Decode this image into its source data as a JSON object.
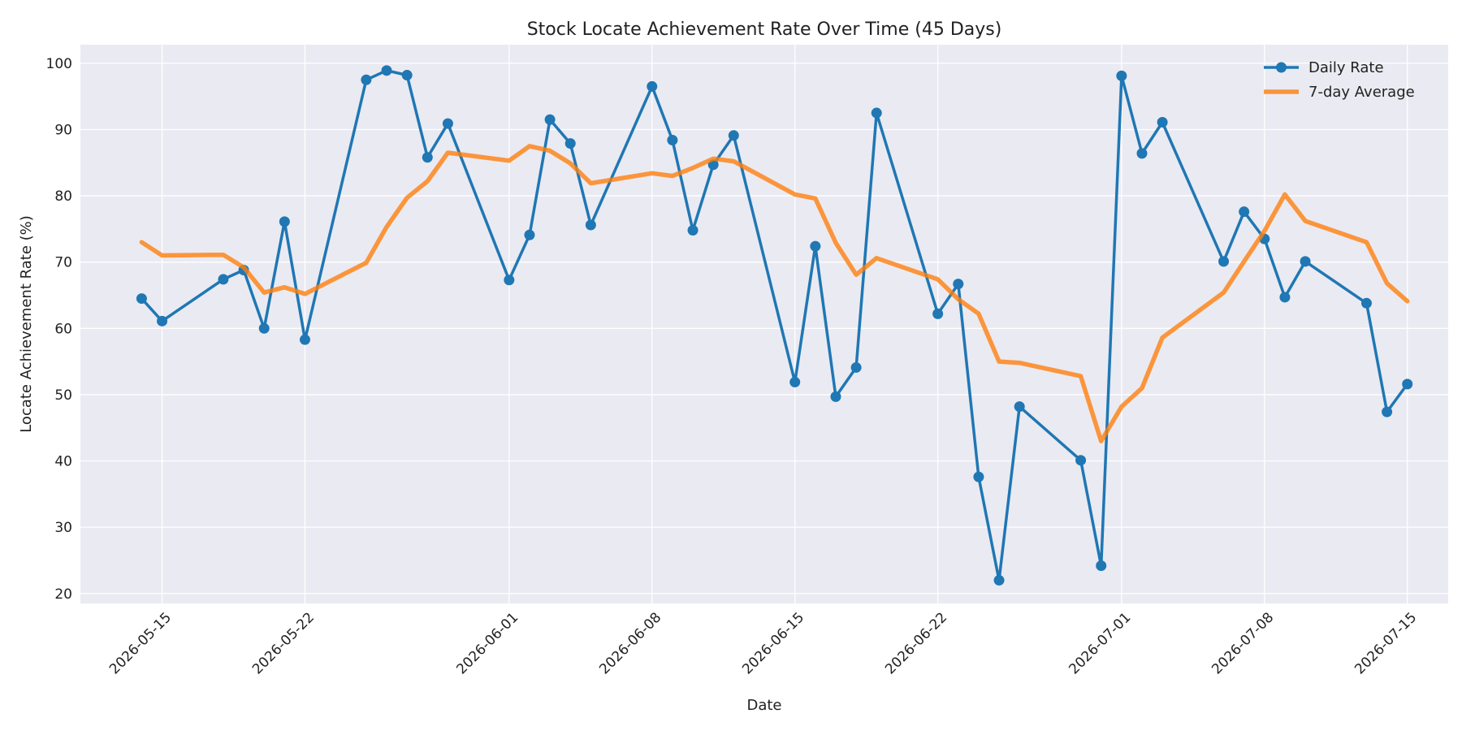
{
  "chart_data": {
    "type": "line",
    "title": "Stock Locate Achievement Rate Over Time (45 Days)",
    "xlabel": "Date",
    "ylabel": "Locate Achievement Rate (%)",
    "xlim": [
      "2026-05-11",
      "2026-07-17"
    ],
    "ylim": [
      18.5,
      102.8
    ],
    "yticks": [
      20,
      30,
      40,
      50,
      60,
      70,
      80,
      90,
      100
    ],
    "xticks": [
      "2026-05-15",
      "2026-05-22",
      "2026-06-01",
      "2026-06-08",
      "2026-06-15",
      "2026-06-22",
      "2026-07-01",
      "2026-07-08",
      "2026-07-15"
    ],
    "grid": true,
    "legend_position": "top-right",
    "x": [
      "2026-05-14",
      "2026-05-15",
      "2026-05-18",
      "2026-05-19",
      "2026-05-20",
      "2026-05-21",
      "2026-05-22",
      "2026-05-25",
      "2026-05-26",
      "2026-05-27",
      "2026-05-28",
      "2026-05-29",
      "2026-06-01",
      "2026-06-02",
      "2026-06-03",
      "2026-06-04",
      "2026-06-05",
      "2026-06-08",
      "2026-06-09",
      "2026-06-10",
      "2026-06-11",
      "2026-06-12",
      "2026-06-15",
      "2026-06-16",
      "2026-06-17",
      "2026-06-18",
      "2026-06-19",
      "2026-06-22",
      "2026-06-23",
      "2026-06-24",
      "2026-06-25",
      "2026-06-26",
      "2026-06-29",
      "2026-06-30",
      "2026-07-01",
      "2026-07-02",
      "2026-07-03",
      "2026-07-06",
      "2026-07-07",
      "2026-07-08",
      "2026-07-09",
      "2026-07-10",
      "2026-07-13",
      "2026-07-14",
      "2026-07-15"
    ],
    "series": [
      {
        "name": "Daily Rate",
        "color": "#1f77b4",
        "marker": "circle",
        "values": [
          64.5,
          61.1,
          67.4,
          68.8,
          60.0,
          76.1,
          58.3,
          97.5,
          98.9,
          98.2,
          85.8,
          90.9,
          67.3,
          74.1,
          91.5,
          87.9,
          75.6,
          96.5,
          88.4,
          74.8,
          84.7,
          89.1,
          51.9,
          72.4,
          49.7,
          54.1,
          92.5,
          62.2,
          66.7,
          37.6,
          22.0,
          48.2,
          40.1,
          24.2,
          98.1,
          86.4,
          91.1,
          70.1,
          77.6,
          73.5,
          64.7,
          70.1,
          63.8,
          47.4,
          51.6
        ]
      },
      {
        "name": "7-day Average",
        "color": "#ff7f0e",
        "marker": "none",
        "values": [
          73.0,
          71.0,
          71.1,
          69.2,
          65.4,
          66.2,
          65.2,
          69.9,
          75.3,
          79.7,
          82.2,
          86.5,
          85.3,
          87.5,
          86.8,
          84.9,
          81.9,
          83.4,
          83.0,
          84.2,
          85.6,
          85.2,
          80.2,
          79.6,
          72.9,
          68.1,
          70.6,
          67.4,
          64.4,
          62.2,
          55.0,
          54.8,
          52.8,
          43.0,
          48.2,
          51.0,
          58.6,
          65.4,
          70.1,
          74.7,
          80.2,
          76.2,
          73.0,
          66.8,
          64.1
        ]
      }
    ]
  }
}
